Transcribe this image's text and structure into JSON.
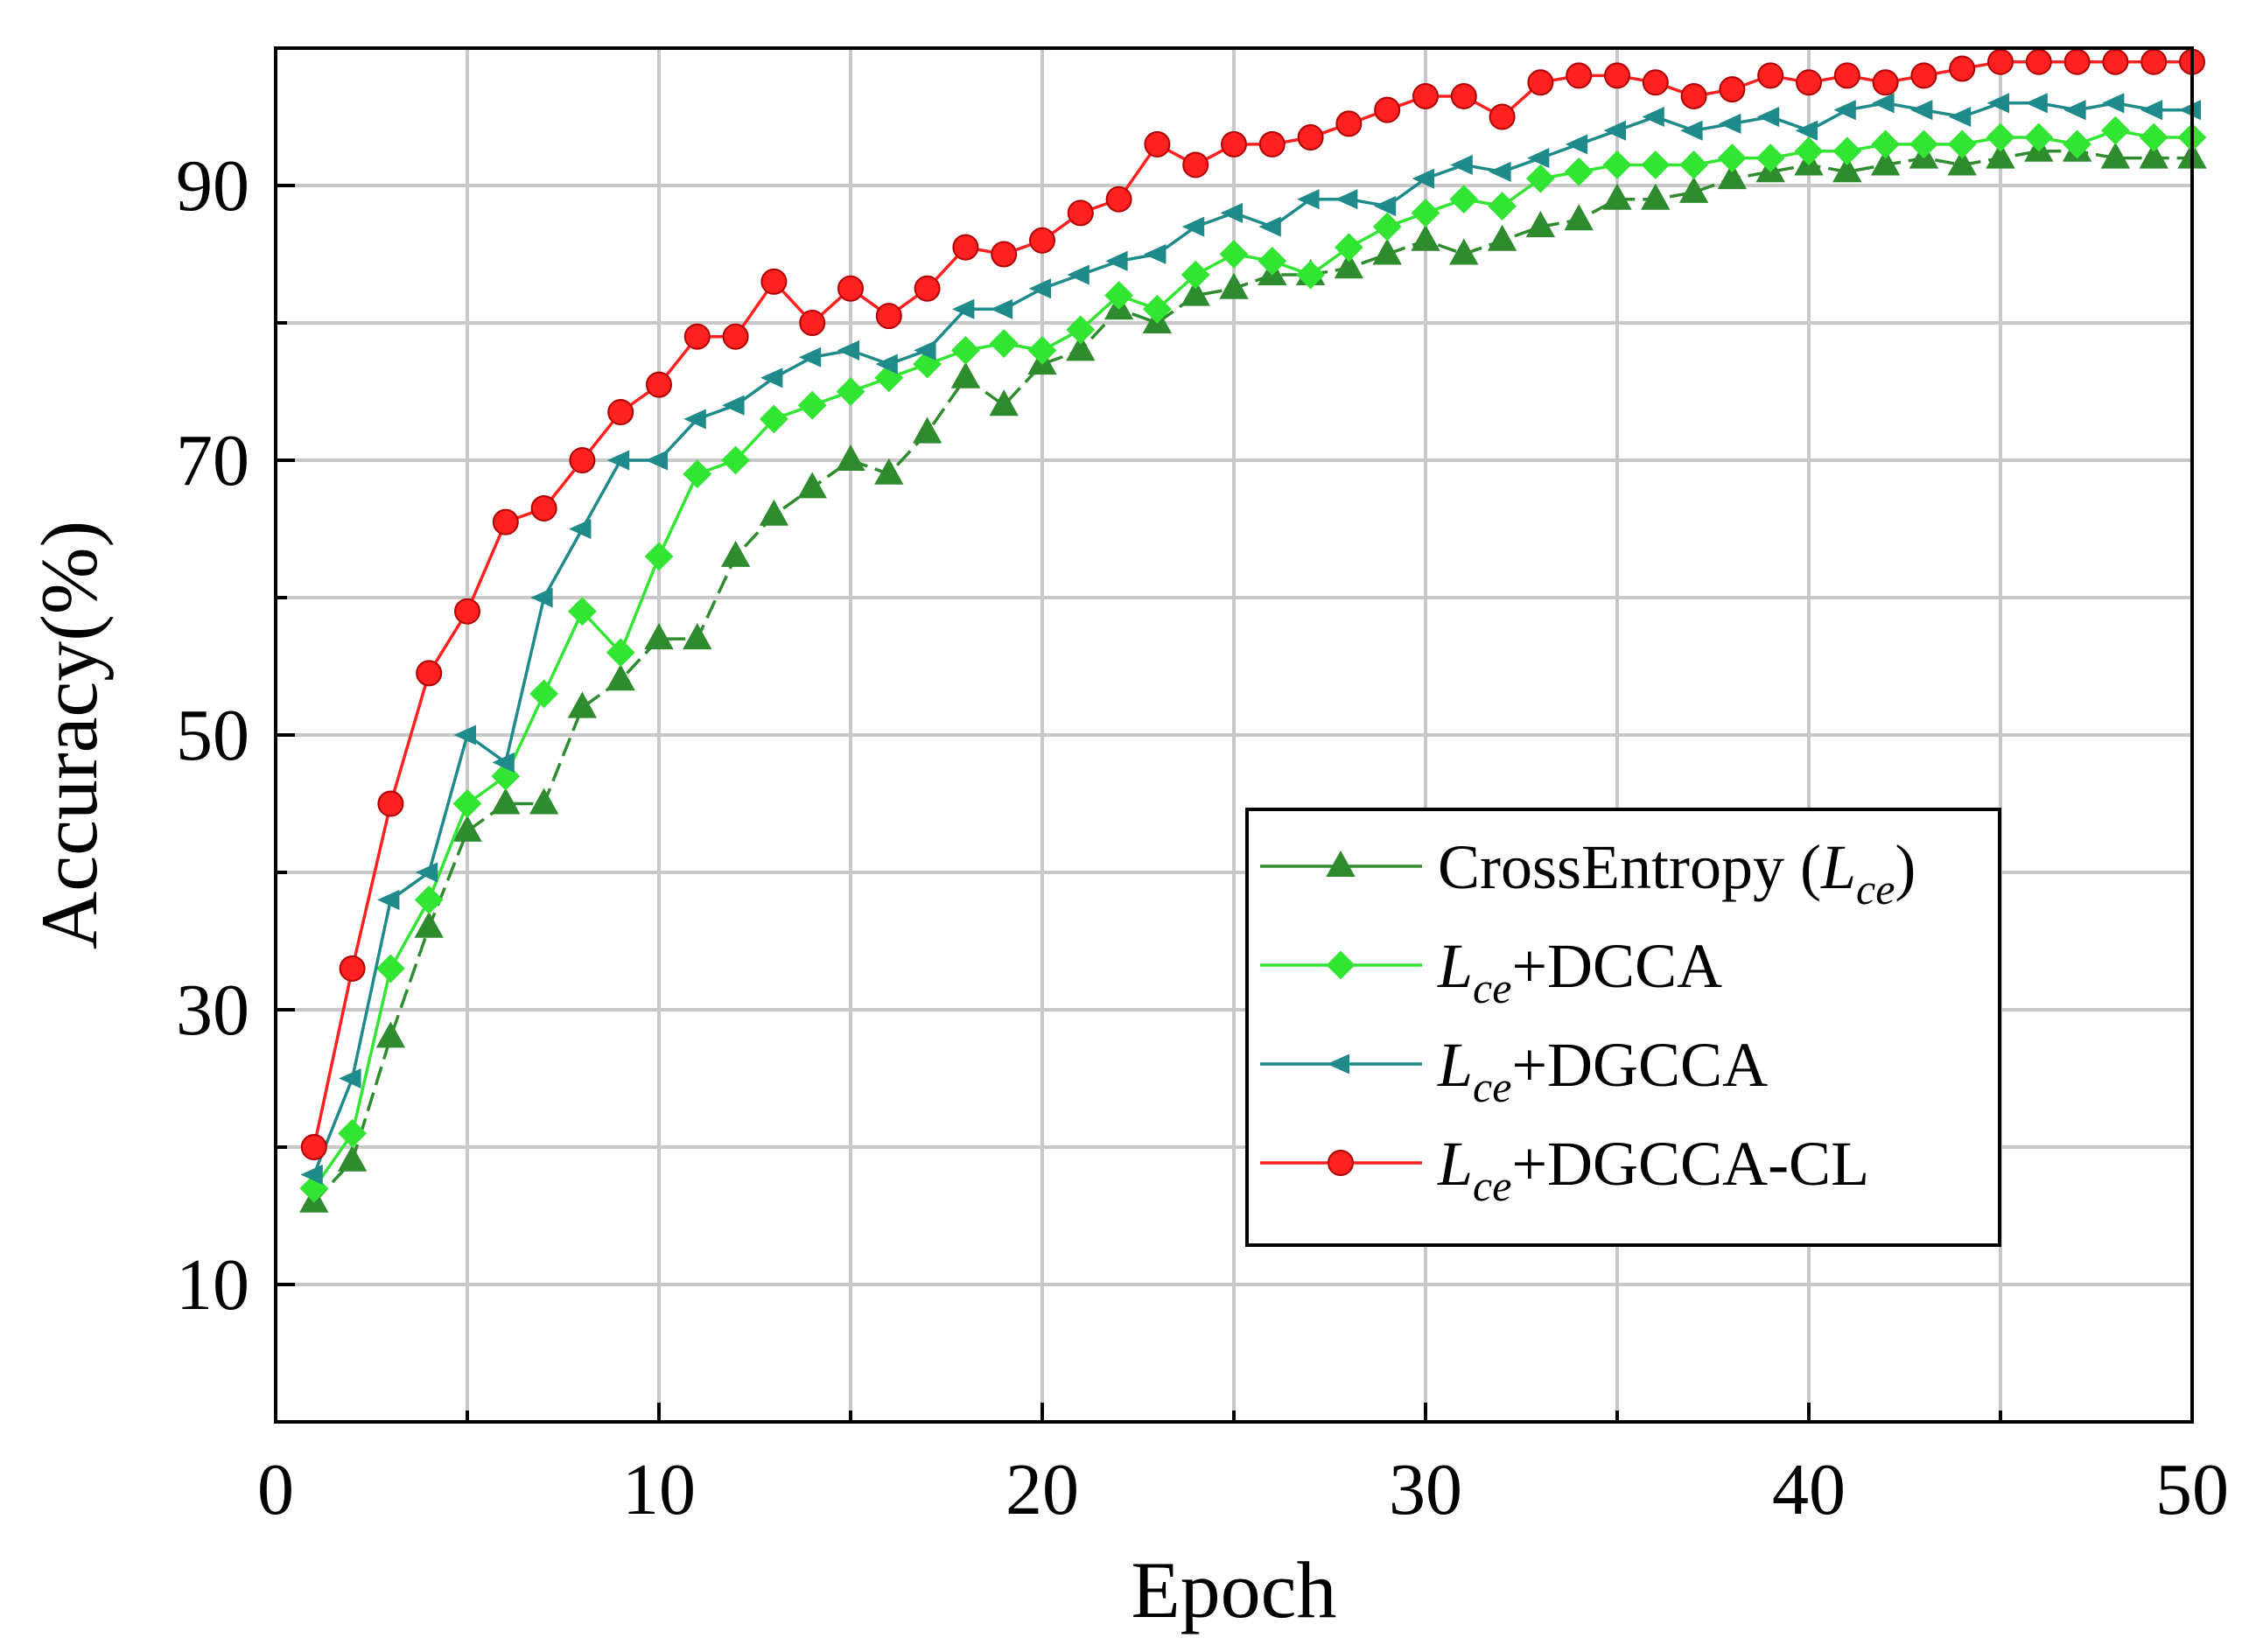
{
  "chart_data": {
    "type": "line",
    "title": "",
    "xlabel": "Epoch",
    "ylabel": "Accuracy(%)",
    "xlim": [
      0,
      50
    ],
    "ylim": [
      0,
      100
    ],
    "xticks": [
      0,
      10,
      20,
      30,
      40,
      50
    ],
    "yticks": [
      10,
      30,
      50,
      70,
      90
    ],
    "grid": true,
    "legend_position": "bottom-right",
    "x": [
      1,
      2,
      3,
      4,
      5,
      6,
      7,
      8,
      9,
      10,
      11,
      12,
      13,
      14,
      15,
      16,
      17,
      18,
      19,
      20,
      21,
      22,
      23,
      24,
      25,
      26,
      27,
      28,
      29,
      30,
      31,
      32,
      33,
      34,
      35,
      36,
      37,
      38,
      39,
      40,
      41,
      42,
      43,
      44,
      45,
      46,
      47,
      48,
      49,
      50
    ],
    "series": [
      {
        "name": "CrossEntropy (L_ce)",
        "legend": {
          "prefix": "CrossEntropy (",
          "italic": "L",
          "sub": "ce",
          "suffix": ")"
        },
        "color": "#2e8b2e",
        "marker": "triangle-up",
        "line_style": "dashed",
        "values": [
          16,
          19,
          28,
          36,
          43,
          45,
          45,
          52,
          54,
          57,
          57,
          63,
          66,
          68,
          70,
          69,
          72,
          76,
          74,
          77,
          78,
          81,
          80,
          82,
          82.5,
          83.5,
          83.5,
          84,
          85,
          86,
          85,
          86,
          87,
          87.5,
          89,
          89,
          89.5,
          90.5,
          91,
          91.5,
          91,
          91.5,
          92,
          91.5,
          92,
          92.5,
          92.5,
          92,
          92,
          92
        ]
      },
      {
        "name": "L_ce+DCCA",
        "legend": {
          "prefix": "",
          "italic": "L",
          "sub": "ce",
          "suffix": "+DCCA"
        },
        "color": "#33e533",
        "marker": "diamond",
        "line_style": "solid",
        "values": [
          17,
          21,
          33,
          38,
          45,
          47,
          53,
          59,
          56,
          63,
          69,
          70,
          73,
          74,
          75,
          76,
          77,
          78,
          78.5,
          78,
          79.5,
          82,
          81,
          83.5,
          85,
          84.5,
          83.5,
          85.5,
          87,
          88,
          89,
          88.5,
          90.5,
          91,
          91.5,
          91.5,
          91.5,
          92,
          92,
          92.5,
          92.5,
          93,
          93,
          93,
          93.5,
          93.5,
          93,
          94,
          93.5,
          93.5
        ]
      },
      {
        "name": "L_ce+DGCCA",
        "legend": {
          "prefix": "",
          "italic": "L",
          "sub": "ce",
          "suffix": "+DGCCA"
        },
        "color": "#1f8a8a",
        "marker": "triangle-left",
        "line_style": "solid",
        "values": [
          18,
          25,
          38,
          40,
          50,
          48,
          60,
          65,
          70,
          70,
          73,
          74,
          76,
          77.5,
          78,
          77,
          78,
          81,
          81,
          82.5,
          83.5,
          84.5,
          85,
          87,
          88,
          87,
          89,
          89,
          88.5,
          90.5,
          91.5,
          91,
          92,
          93,
          94,
          95,
          94,
          94.5,
          95,
          94,
          95.5,
          96,
          95.5,
          95,
          96,
          96,
          95.5,
          96,
          95.5,
          95.5
        ]
      },
      {
        "name": "L_ce+DGCCA-CL",
        "legend": {
          "prefix": "",
          "italic": "L",
          "sub": "ce",
          "suffix": "+DGCCA-CL"
        },
        "color": "#ff2020",
        "marker": "circle",
        "line_style": "solid",
        "values": [
          20,
          33,
          45,
          54.5,
          59,
          65.5,
          66.5,
          70,
          73.5,
          75.5,
          79,
          79,
          83,
          80,
          82.5,
          80.5,
          82.5,
          85.5,
          85,
          86,
          88,
          89,
          93,
          91.5,
          93,
          93,
          93.5,
          94.5,
          95.5,
          96.5,
          96.5,
          95,
          97.5,
          98,
          98,
          97.5,
          96.5,
          97,
          98,
          97.5,
          98,
          97.5,
          98,
          98.5,
          99,
          99,
          99,
          99,
          99,
          99
        ]
      }
    ]
  }
}
